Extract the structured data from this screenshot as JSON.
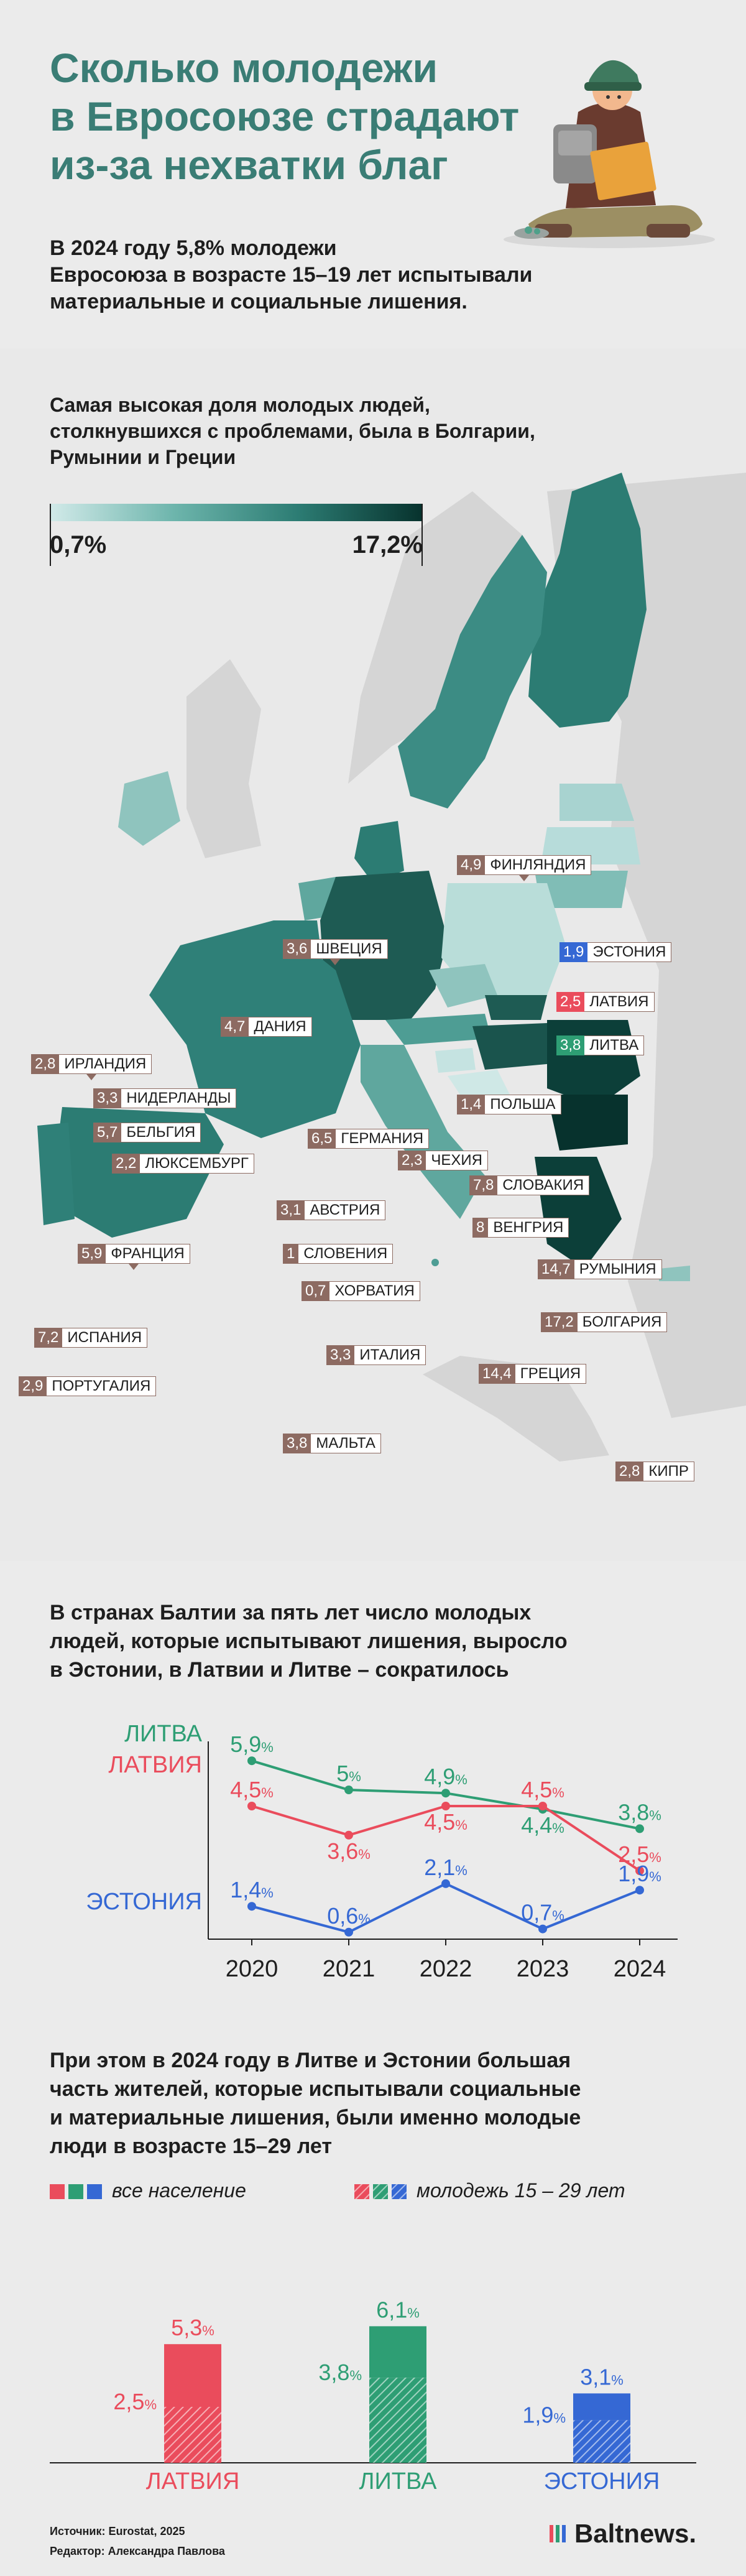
{
  "hero": {
    "title_lines": [
      "Сколько молодежи",
      "в Евросоюзе страдают",
      "из-за нехватки благ"
    ],
    "lead_lines": [
      "В 2024 году 5,8% молодежи",
      "Евросоюза в возрасте 15–19 лет испытывали",
      "материальные и социальные лишения."
    ]
  },
  "map": {
    "heading_lines": [
      "Самая высокая доля молодых людей,",
      "столкнувшихся с проблемами, была в Болгарии,",
      "Румынии и Греции"
    ],
    "legend_min": "0,7%",
    "legend_max": "17,2%",
    "colors": {
      "low": "#d2eae9",
      "mid": "#2c7c73",
      "high": "#07322d",
      "label_bg": "#8d6b62",
      "land_other": "#d5d5d5"
    }
  },
  "chart_data": [
    {
      "type": "choropleth",
      "value_range": [
        0.7,
        17.2
      ],
      "countries": [
        {
          "value": "4,9",
          "name": "ФИНЛЯНДИЯ"
        },
        {
          "value": "3,6",
          "name": "ШВЕЦИЯ"
        },
        {
          "value": "1,9",
          "name": "ЭСТОНИЯ"
        },
        {
          "value": "2,5",
          "name": "ЛАТВИЯ"
        },
        {
          "value": "3,8",
          "name": "ЛИТВА"
        },
        {
          "value": "4,7",
          "name": "ДАНИЯ"
        },
        {
          "value": "2,8",
          "name": "ИРЛАНДИЯ"
        },
        {
          "value": "3,3",
          "name": "НИДЕРЛАНДЫ"
        },
        {
          "value": "5,7",
          "name": "БЕЛЬГИЯ"
        },
        {
          "value": "1,4",
          "name": "ПОЛЬША"
        },
        {
          "value": "2,2",
          "name": "ЛЮКСЕМБУРГ"
        },
        {
          "value": "6,5",
          "name": "ГЕРМАНИЯ"
        },
        {
          "value": "2,3",
          "name": "ЧЕХИЯ"
        },
        {
          "value": "7,8",
          "name": "СЛОВАКИЯ"
        },
        {
          "value": "3,1",
          "name": "АВСТРИЯ"
        },
        {
          "value": "8",
          "name": "ВЕНГРИЯ"
        },
        {
          "value": "5,9",
          "name": "ФРАНЦИЯ"
        },
        {
          "value": "1",
          "name": "СЛОВЕНИЯ"
        },
        {
          "value": "14,7",
          "name": "РУМЫНИЯ"
        },
        {
          "value": "0,7",
          "name": "ХОРВАТИЯ"
        },
        {
          "value": "17,2",
          "name": "БОЛГАРИЯ"
        },
        {
          "value": "7,2",
          "name": "ИСПАНИЯ"
        },
        {
          "value": "3,3",
          "name": "ИТАЛИЯ"
        },
        {
          "value": "2,9",
          "name": "ПОРТУГАЛИЯ"
        },
        {
          "value": "14,4",
          "name": "ГРЕЦИЯ"
        },
        {
          "value": "3,8",
          "name": "МАЛЬТА"
        },
        {
          "value": "2,8",
          "name": "КИПР"
        }
      ]
    },
    {
      "type": "line",
      "title": "В странах Балтии за пять лет число молодых людей, которые испытывают лишения, выросло в Эстонии, в Латвии и Литве – сократилось",
      "x": [
        "2020",
        "2021",
        "2022",
        "2023",
        "2024"
      ],
      "unit": "%",
      "series": [
        {
          "name": "ЛИТВА",
          "color": "#2e9e74",
          "values": [
            5.9,
            5,
            4.9,
            4.4,
            3.8
          ],
          "labels": [
            "5,9",
            "5",
            "4,9",
            "4,4",
            "3,8"
          ]
        },
        {
          "name": "ЛАТВИЯ",
          "color": "#ea4c5c",
          "values": [
            4.5,
            3.6,
            4.5,
            4.5,
            2.5
          ],
          "labels": [
            "4,5",
            "3,6",
            "4,5",
            "4,5",
            "2,5"
          ]
        },
        {
          "name": "ЭСТОНИЯ",
          "color": "#3568d4",
          "values": [
            1.4,
            0.6,
            2.1,
            0.7,
            1.9
          ],
          "labels": [
            "1,4",
            "0,6",
            "2,1",
            "0,7",
            "1,9"
          ]
        }
      ]
    },
    {
      "type": "bar",
      "title": "При этом в 2024 году в Литве и Эстонии большая часть жителей, которые испытывали социальные и материальные лишения, были именно молодые люди в возрасте 15–29 лет",
      "categories": [
        "ЛАТВИЯ",
        "ЛИТВА",
        "ЭСТОНИЯ"
      ],
      "colors": [
        "#ea4c5c",
        "#2e9e74",
        "#3568d4"
      ],
      "unit": "%",
      "series": [
        {
          "name": "все население",
          "values": [
            5.3,
            3.8,
            1.9
          ],
          "labels": [
            "5,3",
            "3,8",
            "1,9"
          ]
        },
        {
          "name": "молодежь 15 – 29 лет",
          "values": [
            2.5,
            6.1,
            3.1
          ],
          "labels": [
            "2,5",
            "6,1",
            "3,1"
          ]
        }
      ]
    }
  ],
  "line": {
    "heading_lines": [
      "В странах Балтии за пять лет число молодых",
      "людей, которые испытывают лишения, выросло",
      "в Эстонии, в Латвии и Литве – сократилось"
    ]
  },
  "bars": {
    "heading_lines": [
      "При этом в 2024 году в Литве и Эстонии большая",
      "часть жителей, которые испытывали социальные",
      "и материальные лишения, были именно молодые",
      "люди в возрасте 15–29 лет"
    ]
  },
  "footer": {
    "source": "Источник: Eurostat, 2025",
    "editor": "Редактор: Александра Павлова",
    "brand": "Baltnews."
  }
}
